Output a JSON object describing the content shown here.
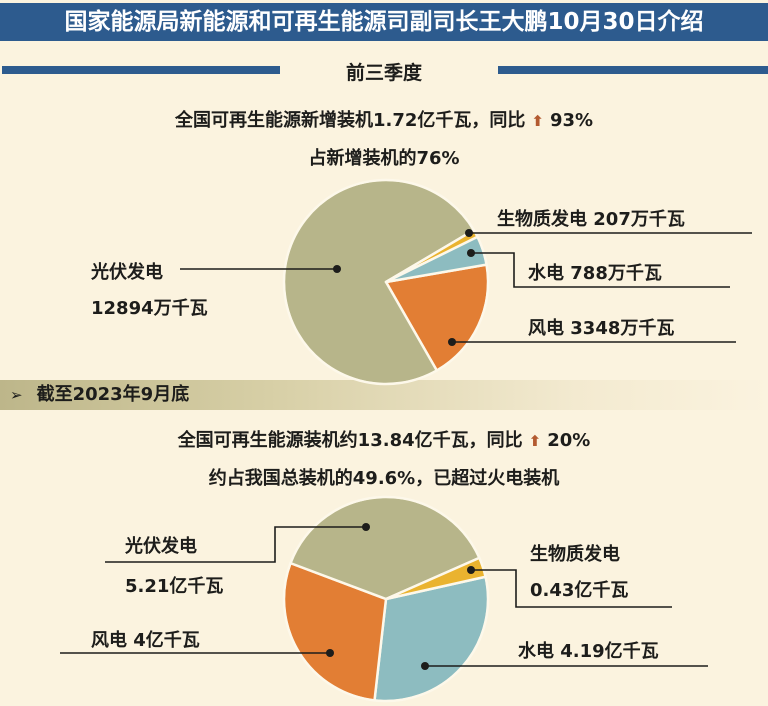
{
  "header": {
    "title": "国家能源局新能源和可再生能源司副司长王大鹏10月30日介绍"
  },
  "colors": {
    "header_blue": "#2d5b8e",
    "background": "#fbf3df",
    "solar": "#b7b58a",
    "wind": "#e27e34",
    "hydro": "#8dbcc0",
    "biomass": "#eab32f",
    "arrow_up": "#b35a30"
  },
  "section1": {
    "title": "前三季度",
    "headline_line1_text": "全国可再生能源新增装机1.72亿千瓦，同比",
    "headline_line1_arrow": "arrow-up",
    "headline_line1_change": "93%",
    "headline_line2": "占新增装机的76%",
    "labels": {
      "solar_name": "光伏发电",
      "solar_value": "12894万千瓦",
      "biomass": "生物质发电 207万千瓦",
      "hydro": "水电 788万千瓦",
      "wind": "风电 3348万千瓦"
    }
  },
  "section2": {
    "title": "截至2023年9月底",
    "chevron": "➢",
    "headline_line1_text": "全国可再生能源装机约13.84亿千瓦，同比",
    "headline_line1_arrow": "arrow-up",
    "headline_line1_change": "20%",
    "headline_line2": "约占我国总装机的49.6%，已超过火电装机",
    "labels": {
      "solar_name": "光伏发电",
      "solar_value": "5.21亿千瓦",
      "wind": "风电 4亿千瓦",
      "biomass_name": "生物质发电",
      "biomass_value": "0.43亿千瓦",
      "hydro": "水电 4.19亿千瓦"
    }
  },
  "chart_data": [
    {
      "type": "pie",
      "title": "前三季度 全国可再生能源新增装机 (万千瓦)",
      "categories": [
        "光伏发电",
        "风电",
        "水电",
        "生物质发电"
      ],
      "values": [
        12894,
        3348,
        788,
        207
      ],
      "unit": "万千瓦",
      "colors": [
        "#b7b58a",
        "#e27e34",
        "#8dbcc0",
        "#eab32f"
      ],
      "annotations": [
        "全国可再生能源新增装机1.72亿千瓦，同比↑93%",
        "占新增装机的76%"
      ]
    },
    {
      "type": "pie",
      "title": "截至2023年9月底 全国可再生能源装机 (亿千瓦)",
      "categories": [
        "光伏发电",
        "风电",
        "水电",
        "生物质发电"
      ],
      "values": [
        5.21,
        4,
        4.19,
        0.43
      ],
      "unit": "亿千瓦",
      "colors": [
        "#b7b58a",
        "#e27e34",
        "#8dbcc0",
        "#eab32f"
      ],
      "annotations": [
        "全国可再生能源装机约13.84亿千瓦，同比↑20%",
        "约占我国总装机的49.6%，已超过火电装机"
      ]
    }
  ]
}
